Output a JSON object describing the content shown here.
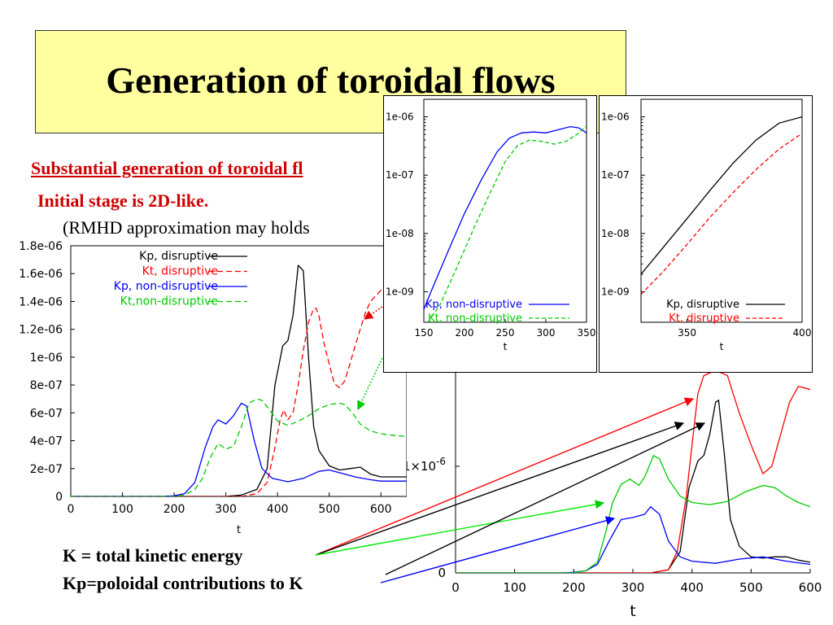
{
  "slide": {
    "title": "Generation of toroidal flows",
    "subtitle": "Substantial generation of toroidal fl",
    "initial_stage": "Initial stage is 2D-like.",
    "rmhd_note": "(RMHD approximation may holds",
    "legend_k": "K = total kinetic energy",
    "legend_kp": "Kp=poloidal contributions to K"
  },
  "colors": {
    "black": "#000000",
    "red": "#ff0000",
    "blue": "#0000ff",
    "green": "#00cc00",
    "title_bg": "#ffffa0",
    "accent_text": "#d00000"
  },
  "chart_data": [
    {
      "id": "main-left",
      "type": "line",
      "xlabel": "t",
      "ylabel": "",
      "xlim": [
        0,
        650
      ],
      "ylim": [
        0,
        1.8e-06
      ],
      "x_ticks": [
        "0",
        "100",
        "200",
        "300",
        "400",
        "500",
        "600"
      ],
      "x_tick_values": [
        0,
        100,
        200,
        300,
        400,
        500,
        600
      ],
      "y_ticks": [
        "0",
        "2e-07",
        "4e-07",
        "6e-07",
        "8e-07",
        "1e-06",
        "1.2e-06",
        "1.4e-06",
        "1.6e-06",
        "1.8e-06"
      ],
      "y_tick_values": [
        0,
        2e-07,
        4e-07,
        6e-07,
        8e-07,
        1e-06,
        1.2e-06,
        1.4e-06,
        1.6e-06,
        1.8e-06
      ],
      "legend_position": "top-left",
      "series": [
        {
          "name": "Kp, disruptive",
          "color": "#000000",
          "dash": "",
          "x": [
            0,
            300,
            330,
            360,
            380,
            395,
            410,
            420,
            430,
            440,
            450,
            460,
            470,
            480,
            500,
            520,
            540,
            560,
            580,
            600,
            650
          ],
          "y": [
            0,
            0,
            1e-08,
            5e-08,
            2e-07,
            8e-07,
            1.08e-06,
            1.12e-06,
            1.3e-06,
            1.66e-06,
            1.62e-06,
            1e-06,
            5e-07,
            3.3e-07,
            2.2e-07,
            1.9e-07,
            2e-07,
            2.1e-07,
            1.6e-07,
            1.4e-07,
            1.4e-07
          ]
        },
        {
          "name": "Kt, disruptive",
          "color": "#ff0000",
          "dash": "7,4",
          "x": [
            0,
            330,
            360,
            380,
            395,
            405,
            412,
            420,
            430,
            440,
            450,
            460,
            470,
            475,
            480,
            490,
            500,
            510,
            520,
            530,
            540,
            550,
            560,
            570,
            580,
            600,
            620,
            650
          ],
          "y": [
            0,
            0,
            2e-08,
            1e-07,
            3.5e-07,
            5.5e-07,
            6.2e-07,
            5.5e-07,
            6e-07,
            8e-07,
            1.05e-06,
            1.25e-06,
            1.35e-06,
            1.35e-06,
            1.3e-06,
            1.1e-06,
            9.5e-07,
            8.1e-07,
            7.8e-07,
            8.3e-07,
            9.5e-07,
            1.08e-06,
            1.2e-06,
            1.32e-06,
            1.4e-06,
            1.48e-06,
            1.48e-06,
            1.48e-06
          ]
        },
        {
          "name": "Kp, non-disruptive",
          "color": "#0000ff",
          "dash": "",
          "x": [
            0,
            180,
            200,
            220,
            240,
            260,
            275,
            285,
            300,
            315,
            330,
            340,
            355,
            370,
            390,
            420,
            450,
            480,
            500,
            520,
            550,
            580,
            600,
            650
          ],
          "y": [
            0,
            0,
            5e-09,
            2e-08,
            1e-07,
            3.5e-07,
            5e-07,
            5.5e-07,
            5.2e-07,
            5.8e-07,
            6.7e-07,
            6.5e-07,
            4e-07,
            2e-07,
            1.3e-07,
            1.05e-07,
            1.3e-07,
            1.8e-07,
            1.9e-07,
            1.7e-07,
            1.4e-07,
            1.2e-07,
            1.1e-07,
            1.1e-07
          ]
        },
        {
          "name": "Kt,non-disruptive",
          "color": "#00cc00",
          "dash": "7,4",
          "x": [
            0,
            200,
            220,
            240,
            255,
            270,
            285,
            300,
            315,
            330,
            345,
            360,
            370,
            385,
            400,
            420,
            440,
            460,
            480,
            500,
            520,
            530,
            545,
            560,
            580,
            600,
            620,
            650
          ],
          "y": [
            0,
            0,
            1e-08,
            5e-08,
            1.3e-07,
            2.8e-07,
            3.8e-07,
            3.4e-07,
            3.6e-07,
            5e-07,
            6.7e-07,
            7e-07,
            6.9e-07,
            6.2e-07,
            5.4e-07,
            5.1e-07,
            5.4e-07,
            5.8e-07,
            6.3e-07,
            6.6e-07,
            6.7e-07,
            6.6e-07,
            6e-07,
            5.2e-07,
            4.7e-07,
            4.5e-07,
            4.4e-07,
            4.3e-07
          ]
        }
      ]
    },
    {
      "id": "inset-nondisruptive",
      "type": "line",
      "yscale": "log",
      "xlabel": "t",
      "xlim": [
        150,
        350
      ],
      "ylim": [
        3e-10,
        2e-06
      ],
      "x_ticks": [
        "150",
        "200",
        "250",
        "300",
        "350"
      ],
      "x_tick_values": [
        150,
        200,
        250,
        300,
        350
      ],
      "y_ticks": [
        "1e-09",
        "1e-08",
        "1e-07",
        "1e-06"
      ],
      "y_tick_values": [
        1e-09,
        1e-08,
        1e-07,
        1e-06
      ],
      "legend_position": "bottom-left",
      "series": [
        {
          "name": "Kp, non-disruptive",
          "color": "#0000ff",
          "dash": "",
          "x": [
            150,
            160,
            180,
            200,
            220,
            240,
            255,
            270,
            285,
            300,
            315,
            330,
            340,
            350
          ],
          "y": [
            5e-10,
            1.1e-09,
            5e-09,
            2.2e-08,
            8e-08,
            2.5e-07,
            4.3e-07,
            5.3e-07,
            5.5e-07,
            5.3e-07,
            6e-07,
            6.8e-07,
            6.5e-07,
            5.3e-07
          ]
        },
        {
          "name": "Kt, non-disruptive",
          "color": "#00cc00",
          "dash": "5,3",
          "x": [
            155,
            170,
            190,
            210,
            230,
            250,
            265,
            280,
            295,
            310,
            325,
            340,
            350
          ],
          "y": [
            3e-10,
            6e-10,
            2.5e-09,
            1.1e-08,
            4.5e-08,
            1.7e-07,
            3.2e-07,
            4e-07,
            3.8e-07,
            3.4e-07,
            3.8e-07,
            5.2e-07,
            7e-07
          ]
        }
      ]
    },
    {
      "id": "inset-disruptive",
      "type": "line",
      "yscale": "log",
      "xlabel": "t",
      "xlim": [
        330,
        400
      ],
      "ylim": [
        3e-10,
        2e-06
      ],
      "x_ticks": [
        "350",
        "400"
      ],
      "x_tick_values": [
        350,
        400
      ],
      "y_ticks": [
        "1e-09",
        "1e-08",
        "1e-07",
        "1e-06"
      ],
      "y_tick_values": [
        1e-09,
        1e-08,
        1e-07,
        1e-06
      ],
      "legend_position": "bottom-right",
      "series": [
        {
          "name": "Kp, disruptive",
          "color": "#000000",
          "dash": "",
          "x": [
            330,
            340,
            350,
            360,
            370,
            380,
            390,
            400
          ],
          "y": [
            2e-09,
            6e-09,
            1.8e-08,
            5.5e-08,
            1.6e-07,
            4e-07,
            7.8e-07,
            1e-06
          ]
        },
        {
          "name": "Kt, disruptive",
          "color": "#ff0000",
          "dash": "5,3",
          "x": [
            330,
            340,
            350,
            360,
            370,
            380,
            390,
            400
          ],
          "y": [
            9e-10,
            2.3e-09,
            6.5e-09,
            1.9e-08,
            5e-08,
            1.25e-07,
            2.8e-07,
            5.2e-07
          ]
        }
      ]
    },
    {
      "id": "main-right",
      "type": "line",
      "xlabel": "t",
      "xlim": [
        0,
        600
      ],
      "ylim": [
        0,
        1.9e-06
      ],
      "x_ticks": [
        "0",
        "100",
        "200",
        "300",
        "400",
        "500",
        "600"
      ],
      "x_tick_values": [
        0,
        100,
        200,
        300,
        400,
        500,
        600
      ],
      "y_ticks": [
        "0",
        "1×10"
      ],
      "y_tick_values": [
        0,
        1e-06
      ],
      "y_tick_exponent": "-6",
      "series": [
        {
          "name": "Kp",
          "color": "#000000",
          "dash": "",
          "x": [
            0,
            330,
            360,
            380,
            395,
            410,
            420,
            430,
            440,
            445,
            455,
            465,
            480,
            500,
            520,
            540,
            560,
            580,
            600
          ],
          "y": [
            0,
            0,
            3e-08,
            2e-07,
            8e-07,
            1.05e-06,
            1.1e-06,
            1.3e-06,
            1.6e-06,
            1.62e-06,
            1.1e-06,
            5e-07,
            2.5e-07,
            1.5e-07,
            1.4e-07,
            1.5e-07,
            1.5e-07,
            1.2e-07,
            1e-07
          ]
        },
        {
          "name": "Kt",
          "color": "#ff0000",
          "dash": "",
          "x": [
            0,
            330,
            360,
            375,
            390,
            400,
            410,
            420,
            440,
            460,
            480,
            500,
            520,
            535,
            550,
            565,
            580,
            600
          ],
          "y": [
            0,
            0,
            3e-08,
            2e-07,
            7e-07,
            1.2e-06,
            1.68e-06,
            1.85e-06,
            1.9e-06,
            1.85e-06,
            1.5e-06,
            1.2e-06,
            9.3e-07,
            1e-06,
            1.3e-06,
            1.6e-06,
            1.75e-06,
            1.72e-06
          ]
        },
        {
          "name": "Kp, non-disruptive",
          "color": "#0000ff",
          "dash": "",
          "x": [
            0,
            180,
            200,
            220,
            240,
            260,
            280,
            300,
            320,
            330,
            345,
            360,
            380,
            400,
            440,
            480,
            520,
            560,
            600
          ],
          "y": [
            0,
            0,
            5e-09,
            2e-08,
            8e-08,
            3e-07,
            5e-07,
            5.2e-07,
            5.5e-07,
            6.2e-07,
            5.5e-07,
            3e-07,
            1.5e-07,
            1.1e-07,
            9e-08,
            1.3e-07,
            1.5e-07,
            1.1e-07,
            8e-08
          ]
        },
        {
          "name": "Kt, non-disruptive",
          "color": "#00cc00",
          "dash": "",
          "x": [
            0,
            200,
            220,
            240,
            255,
            265,
            280,
            295,
            310,
            320,
            335,
            345,
            360,
            380,
            400,
            430,
            460,
            490,
            520,
            540,
            560,
            580,
            600
          ],
          "y": [
            0,
            0,
            2e-08,
            1e-07,
            4e-07,
            6.5e-07,
            8.3e-07,
            8.8e-07,
            8.2e-07,
            9e-07,
            1.1e-06,
            1.07e-06,
            8.8e-07,
            7.2e-07,
            6.6e-07,
            6.4e-07,
            6.7e-07,
            7.6e-07,
            8.2e-07,
            8e-07,
            7.2e-07,
            6.6e-07,
            6.2e-07
          ]
        }
      ]
    }
  ]
}
